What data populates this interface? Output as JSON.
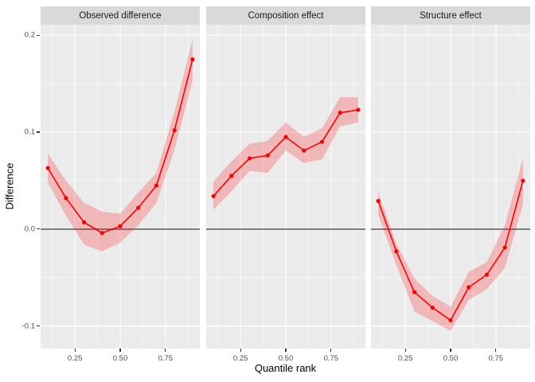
{
  "axes": {
    "x_label": "Quantile rank",
    "y_label": "Difference",
    "x_tick_labels": [
      "0.25",
      "0.50",
      "0.75"
    ],
    "x_tick_values": [
      0.25,
      0.5,
      0.75
    ],
    "x_minor_values": [
      0.125,
      0.375,
      0.625,
      0.875
    ],
    "y_tick_labels": [
      "-0.1",
      "0.0",
      "0.1",
      "0.2"
    ],
    "y_tick_values": [
      -0.1,
      0.0,
      0.1,
      0.2
    ],
    "y_minor_values": [
      -0.05,
      0.05,
      0.15
    ],
    "xlim": [
      0.06,
      0.94
    ],
    "ylim": [
      -0.1232,
      0.2108
    ],
    "hline_y": 0,
    "grid": "on",
    "legend": "none"
  },
  "style": {
    "panel_bg": "#EBEBEB",
    "strip_bg": "#D9D9D9",
    "grid_color": "#FFFFFF",
    "line_color": "#FF0000",
    "point_color": "#FF0000",
    "ribbon_opacity": 0.22,
    "hline_color": "#7E7E7E",
    "tick_color": "#333333",
    "tick_label_color": "#4D4D4D"
  },
  "chart_data": [
    {
      "type": "line",
      "title": "Observed difference",
      "x": [
        0.1,
        0.2,
        0.3,
        0.4,
        0.5,
        0.6,
        0.7,
        0.8,
        0.9
      ],
      "values": [
        0.063,
        0.032,
        0.007,
        -0.004,
        0.003,
        0.022,
        0.045,
        0.102,
        0.175
      ],
      "ribbon_lower": [
        0.048,
        0.014,
        -0.016,
        -0.023,
        -0.014,
        0.004,
        0.027,
        0.082,
        0.153
      ],
      "ribbon_upper": [
        0.078,
        0.05,
        0.027,
        0.018,
        0.016,
        0.038,
        0.058,
        0.121,
        0.196
      ]
    },
    {
      "type": "line",
      "title": "Composition effect",
      "x": [
        0.1,
        0.2,
        0.3,
        0.4,
        0.5,
        0.6,
        0.7,
        0.8,
        0.9
      ],
      "values": [
        0.034,
        0.055,
        0.073,
        0.076,
        0.095,
        0.081,
        0.09,
        0.12,
        0.123
      ],
      "ribbon_lower": [
        0.02,
        0.039,
        0.06,
        0.058,
        0.081,
        0.068,
        0.072,
        0.106,
        0.11
      ],
      "ribbon_upper": [
        0.049,
        0.07,
        0.088,
        0.091,
        0.11,
        0.095,
        0.104,
        0.136,
        0.136
      ]
    },
    {
      "type": "line",
      "title": "Structure effect",
      "x": [
        0.1,
        0.2,
        0.3,
        0.4,
        0.5,
        0.6,
        0.7,
        0.8,
        0.9
      ],
      "values": [
        0.029,
        -0.023,
        -0.065,
        -0.081,
        -0.094,
        -0.06,
        -0.047,
        -0.019,
        0.05
      ],
      "ribbon_lower": [
        0.015,
        -0.037,
        -0.085,
        -0.095,
        -0.105,
        -0.073,
        -0.062,
        -0.04,
        0.026
      ],
      "ribbon_upper": [
        0.038,
        -0.015,
        -0.051,
        -0.069,
        -0.08,
        -0.044,
        -0.034,
        0.004,
        0.073
      ]
    }
  ]
}
